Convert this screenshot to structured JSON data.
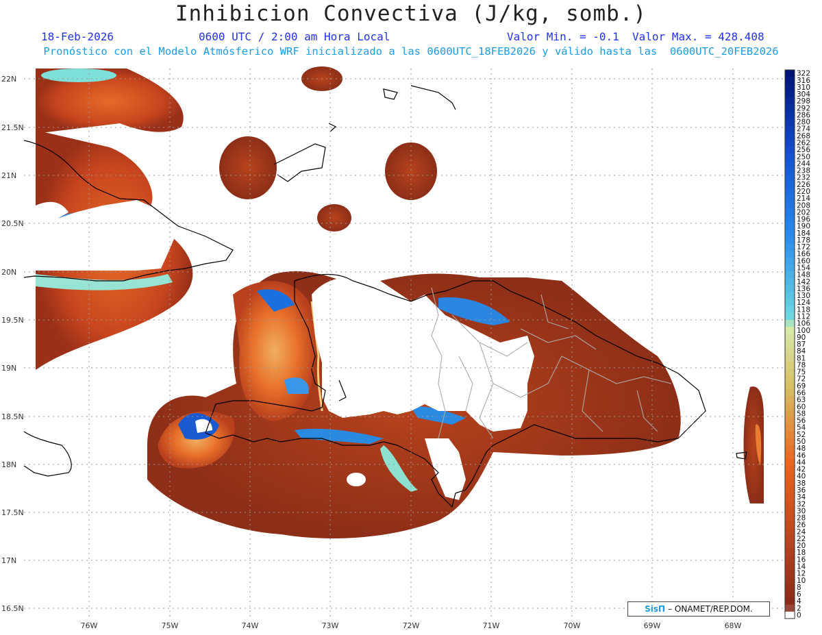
{
  "header": {
    "title": "Inhibicion Convectiva (J/kg, somb.)",
    "date": "18-Feb-2026",
    "time": "0600 UTC / 2:00 am Hora Local",
    "minmax": "Valor Min. = -0.1  Valor Max. = 428.408",
    "subtitle": "Pronóstico con el Modelo Atmósferico WRF inicializado a las 0600UTC_18FEB2026 y válido hasta las  0600UTC_20FEB2026"
  },
  "axes": {
    "lat_labels": [
      "22N",
      "21.5N",
      "21N",
      "20.5N",
      "20N",
      "19.5N",
      "19N",
      "18.5N",
      "18N",
      "17.5N",
      "17N",
      "16.5N"
    ],
    "lon_labels": [
      "76W",
      "75W",
      "74W",
      "73W",
      "72W",
      "71W",
      "70W",
      "69W",
      "68W"
    ]
  },
  "colorbar": {
    "levels": [
      "322",
      "316",
      "310",
      "304",
      "298",
      "292",
      "286",
      "280",
      "274",
      "268",
      "262",
      "256",
      "250",
      "244",
      "238",
      "232",
      "226",
      "220",
      "214",
      "208",
      "202",
      "196",
      "190",
      "184",
      "178",
      "172",
      "166",
      "160",
      "154",
      "148",
      "142",
      "136",
      "130",
      "124",
      "118",
      "112",
      "106",
      "100",
      "90",
      "87",
      "84",
      "81",
      "78",
      "75",
      "72",
      "69",
      "66",
      "63",
      "60",
      "58",
      "56",
      "54",
      "52",
      "50",
      "48",
      "46",
      "44",
      "42",
      "40",
      "38",
      "36",
      "34",
      "32",
      "30",
      "28",
      "26",
      "24",
      "22",
      "20",
      "18",
      "16",
      "14",
      "12",
      "10",
      "8",
      "6",
      "4",
      "2",
      "0"
    ]
  },
  "credit": {
    "brand": "SisΠ",
    "text": "– ONAMET/REP.DOM."
  },
  "colors": {
    "low": "#8a2a18",
    "mid": "#e85a10",
    "high": "#f0c860",
    "blue": "#1a70e0"
  }
}
